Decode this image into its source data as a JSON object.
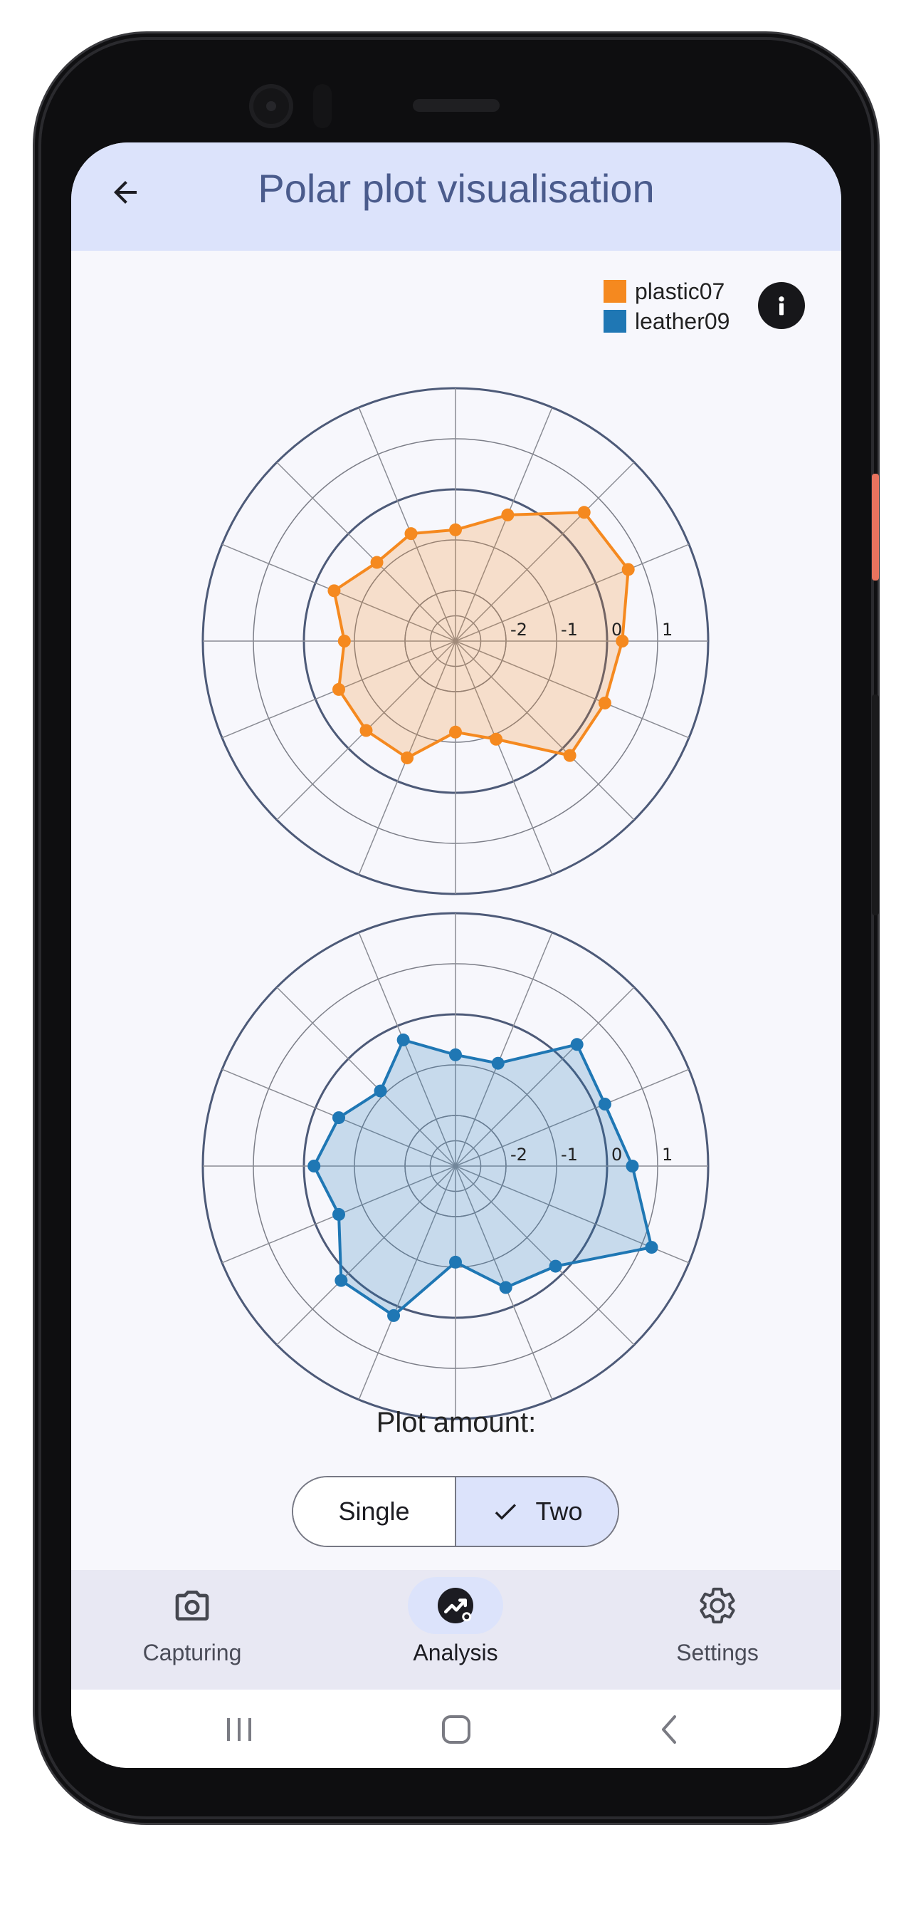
{
  "app_bar": {
    "title": "Polar plot visualisation",
    "back_icon": "arrow-back-icon"
  },
  "legend": {
    "items": [
      {
        "label": "plastic07",
        "color": "#f5891f"
      },
      {
        "label": "leather09",
        "color": "#1f77b4"
      }
    ],
    "info_icon": "info-icon"
  },
  "chart_data": [
    {
      "type": "polar",
      "radial_ticks": [
        "-2",
        "-1",
        "0",
        "1",
        "2"
      ],
      "rlim": [
        -3,
        2
      ],
      "angles_deg": [
        0,
        22.5,
        45,
        67.5,
        90,
        112.5,
        135,
        157.5,
        180,
        202.5,
        225,
        247.5,
        270,
        292.5,
        315,
        337.5
      ],
      "series": [
        {
          "name": "plastic07",
          "color": "#f5891f",
          "values": [
            0.3,
            0.7,
            0.6,
            -0.3,
            -0.8,
            -0.7,
            -0.8,
            -0.4,
            -0.8,
            -0.5,
            -0.5,
            -0.5,
            -1.2,
            -0.9,
            0.2,
            0.2
          ]
        }
      ],
      "grid": true
    },
    {
      "type": "polar",
      "radial_ticks": [
        "-2",
        "-1",
        "0",
        "1",
        "2"
      ],
      "rlim": [
        -3,
        2
      ],
      "angles_deg": [
        0,
        22.5,
        45,
        67.5,
        90,
        112.5,
        135,
        157.5,
        180,
        202.5,
        225,
        247.5,
        270,
        292.5,
        315,
        337.5
      ],
      "series": [
        {
          "name": "leather09",
          "color": "#1f77b4",
          "values": [
            0.5,
            0.2,
            0.4,
            -0.8,
            -0.8,
            -0.3,
            -0.9,
            -0.5,
            -0.2,
            -0.5,
            0.2,
            0.2,
            -1.1,
            -0.4,
            -0.2,
            1.2
          ]
        }
      ],
      "grid": true
    }
  ],
  "plot_amount": {
    "label": "Plot amount:",
    "options": [
      "Single",
      "Two"
    ],
    "selected": "Two",
    "check_icon": "check-icon"
  },
  "bottom_nav": {
    "items": [
      {
        "label": "Capturing",
        "icon": "camera-icon"
      },
      {
        "label": "Analysis",
        "icon": "analytics-icon"
      },
      {
        "label": "Settings",
        "icon": "gear-icon"
      }
    ],
    "selected": "Analysis"
  },
  "system_nav": {
    "icons": [
      "recents-icon",
      "home-icon",
      "back-icon"
    ]
  }
}
